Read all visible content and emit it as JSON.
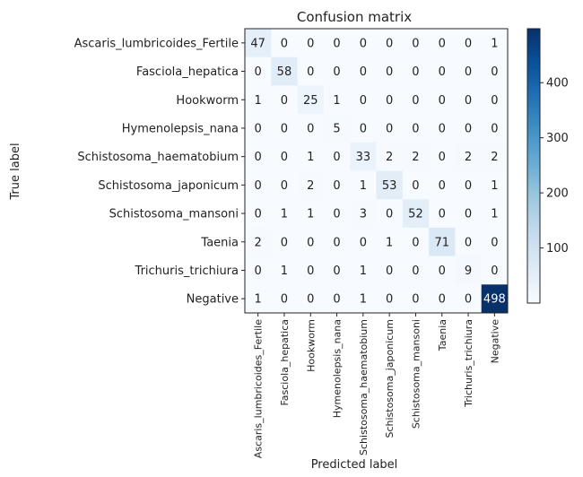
{
  "chart_data": {
    "type": "heatmap",
    "title": "Confusion matrix",
    "xlabel": "Predicted label",
    "ylabel": "True label",
    "row_labels": [
      "Ascaris_lumbricoides_Fertile",
      "Fasciola_hepatica",
      "Hookworm",
      "Hymenolepsis_nana",
      "Schistosoma_haematobium",
      "Schistosoma_japonicum",
      "Schistosoma_mansoni",
      "Taenia",
      "Trichuris_trichiura",
      "Negative"
    ],
    "col_labels": [
      "Ascaris_lumbricoides_Fertile",
      "Fasciola_hepatica",
      "Hookworm",
      "Hymenolepsis_nana",
      "Schistosoma_haematobium",
      "Schistosoma_japonicum",
      "Schistosoma_mansoni",
      "Taenia",
      "Trichuris_trichiura",
      "Negative"
    ],
    "values": [
      [
        47,
        0,
        0,
        0,
        0,
        0,
        0,
        0,
        0,
        1
      ],
      [
        0,
        58,
        0,
        0,
        0,
        0,
        0,
        0,
        0,
        0
      ],
      [
        1,
        0,
        25,
        1,
        0,
        0,
        0,
        0,
        0,
        0
      ],
      [
        0,
        0,
        0,
        5,
        0,
        0,
        0,
        0,
        0,
        0
      ],
      [
        0,
        0,
        1,
        0,
        33,
        2,
        2,
        0,
        2,
        2
      ],
      [
        0,
        0,
        2,
        0,
        1,
        53,
        0,
        0,
        0,
        1
      ],
      [
        0,
        1,
        1,
        0,
        3,
        0,
        52,
        0,
        0,
        1
      ],
      [
        2,
        0,
        0,
        0,
        0,
        1,
        0,
        71,
        0,
        0
      ],
      [
        0,
        1,
        0,
        0,
        1,
        0,
        0,
        0,
        9,
        0
      ],
      [
        1,
        0,
        0,
        0,
        1,
        0,
        0,
        0,
        0,
        498
      ]
    ],
    "colorbar": {
      "ticks": [
        100,
        200,
        300,
        400
      ],
      "range": [
        0,
        498
      ],
      "colormap": "Blues"
    },
    "grid": false
  }
}
